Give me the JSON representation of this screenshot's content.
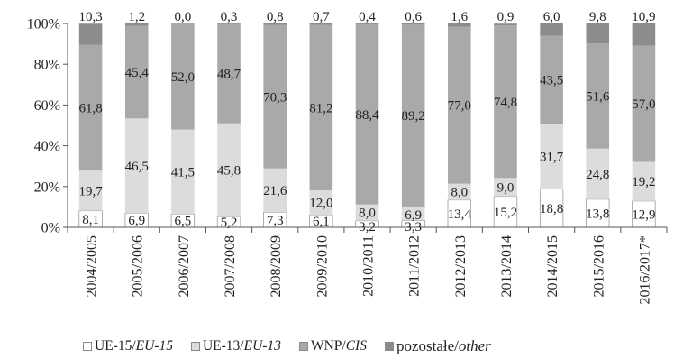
{
  "chart_data": {
    "type": "bar",
    "stacked": true,
    "percent": true,
    "categories": [
      "2004/2005",
      "2005/2006",
      "2006/2007",
      "2007/2008",
      "2008/2009",
      "2009/2010",
      "2010/2011",
      "2011/2012",
      "2012/2013",
      "2013/2014",
      "2014/2015",
      "2015/2016",
      "2016/2017*"
    ],
    "ylim": [
      0,
      100
    ],
    "yticks": [
      "0%",
      "20%",
      "40%",
      "60%",
      "80%",
      "100%"
    ],
    "grid": false,
    "legend_position": "bottom",
    "series": [
      {
        "name": "UE-15/",
        "name_italic": "EU-15",
        "color": "#ffffff",
        "values": [
          8.1,
          6.9,
          6.5,
          5.2,
          7.3,
          6.1,
          3.2,
          3.3,
          13.4,
          15.2,
          18.8,
          13.8,
          12.9
        ],
        "labels": [
          "8,1",
          "6,9",
          "6,5",
          "5,2",
          "7,3",
          "6,1",
          "3,2",
          "3,3",
          "13,4",
          "15,2",
          "18,8",
          "13,8",
          "12,9"
        ]
      },
      {
        "name": "UE-13/",
        "name_italic": "EU-13",
        "color": "#dcdcdc",
        "values": [
          19.7,
          46.5,
          41.5,
          45.8,
          21.6,
          12.0,
          8.0,
          6.9,
          8.0,
          9.0,
          31.7,
          24.8,
          19.2
        ],
        "labels": [
          "19,7",
          "46,5",
          "41,5",
          "45,8",
          "21,6",
          "12,0",
          "8,0",
          "6,9",
          "8,0",
          "9,0",
          "31,7",
          "24,8",
          "19,2"
        ]
      },
      {
        "name": "WNP/",
        "name_italic": "CIS",
        "color": "#a9a9a9",
        "values": [
          61.8,
          45.4,
          52.0,
          48.7,
          70.3,
          81.2,
          88.4,
          89.2,
          77.0,
          74.8,
          43.5,
          51.6,
          57.0
        ],
        "labels": [
          "61,8",
          "45,4",
          "52,0",
          "48,7",
          "70,3",
          "81,2",
          "88,4",
          "89,2",
          "77,0",
          "74,8",
          "43,5",
          "51,6",
          "57,0"
        ]
      },
      {
        "name": "pozostałe/",
        "name_italic": "other",
        "color": "#8c8c8c",
        "values": [
          10.3,
          1.2,
          0.0,
          0.3,
          0.8,
          0.7,
          0.4,
          0.6,
          1.6,
          0.9,
          6.0,
          9.8,
          10.9
        ],
        "labels": [
          "10,3",
          "1,2",
          "0,0",
          "0,3",
          "0,8",
          "0,7",
          "0,4",
          "0,6",
          "1,6",
          "0,9",
          "6,0",
          "9,8",
          "10,9"
        ]
      }
    ]
  }
}
